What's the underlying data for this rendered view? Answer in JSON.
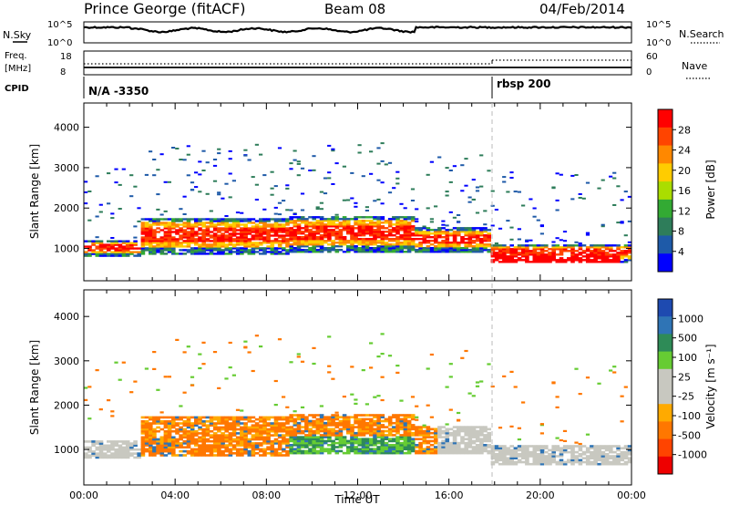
{
  "header": {
    "station": "Prince George (fitACF)",
    "beam": "Beam 08",
    "date": "04/Feb/2014"
  },
  "panels": {
    "nsky": {
      "label": "N.Sky",
      "yticks": [
        "10^5",
        "10^0"
      ],
      "right_label": "N.Search",
      "right_ticks": [
        "10^5",
        "10^0"
      ]
    },
    "freq": {
      "label_top": "Freq.",
      "label_bottom": "[MHz]",
      "yticks": [
        "18",
        "8"
      ],
      "right_label": "Nave",
      "right_ticks": [
        "60",
        "0"
      ]
    },
    "cpid": {
      "label": "CPID",
      "programs": [
        {
          "name": "N/A -3350",
          "start_hour": 0
        },
        {
          "name": "rbsp 200",
          "start_hour": 18
        }
      ]
    }
  },
  "chart_data": [
    {
      "type": "heatmap",
      "title": "",
      "ylabel": "Slant Range [km]",
      "xlabel": "",
      "xlim": [
        0,
        24
      ],
      "ylim": [
        200,
        4600
      ],
      "yticks": [
        "1000",
        "2000",
        "3000",
        "4000"
      ],
      "colorbar": {
        "label": "Power [dB]",
        "ticks": [
          "28",
          "24",
          "20",
          "16",
          "12",
          "8",
          "4"
        ],
        "colors": [
          "#ff0000",
          "#ff4400",
          "#ff8800",
          "#ffcc00",
          "#aadd00",
          "#33aa33",
          "#2e7d5a",
          "#1e5aa8",
          "#0000ff"
        ]
      }
    },
    {
      "type": "heatmap",
      "title": "",
      "ylabel": "Slant Range [km]",
      "xlabel": "Time UT",
      "xlim": [
        0,
        24
      ],
      "ylim": [
        200,
        4600
      ],
      "yticks": [
        "1000",
        "2000",
        "3000",
        "4000"
      ],
      "xticks": [
        "00:00",
        "04:00",
        "08:00",
        "12:00",
        "16:00",
        "20:00",
        "00:00"
      ],
      "colorbar": {
        "label": "Velocity  [m s⁻¹]",
        "ticks": [
          "1000",
          "500",
          "100",
          "25",
          "-25",
          "-100",
          "-500",
          "-1000"
        ],
        "colors": [
          "#1e4ab0",
          "#2f74b5",
          "#2e8b57",
          "#66cc33",
          "#c8c8c0",
          "#c8c8c0",
          "#ffaa00",
          "#ff7700",
          "#ff4400",
          "#ee0000"
        ]
      }
    }
  ]
}
